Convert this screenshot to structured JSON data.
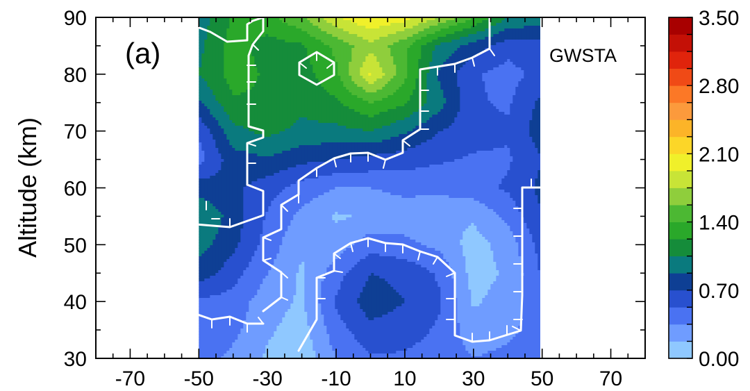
{
  "chart_data": {
    "type": "heatmap",
    "title": "",
    "panel_label": "(a)",
    "annotation": "GWSTA",
    "xlabel": "",
    "ylabel": "Altitude (km)",
    "xlim": [
      -80,
      80
    ],
    "ylim": [
      30,
      90
    ],
    "x_ticks": [
      "-70",
      "-50",
      "-30",
      "-10",
      "10",
      "30",
      "50",
      "70"
    ],
    "y_ticks": [
      "30",
      "40",
      "50",
      "60",
      "70",
      "80",
      "90"
    ],
    "data_extent_x": [
      -50,
      50
    ],
    "colorbar": {
      "min": 0.0,
      "max": 3.5,
      "levels": [
        0.0,
        0.175,
        0.35,
        0.525,
        0.7,
        0.875,
        1.05,
        1.225,
        1.4,
        1.575,
        1.75,
        1.925,
        2.1,
        2.275,
        2.45,
        2.625,
        2.8,
        2.975,
        3.15,
        3.325,
        3.5
      ],
      "tick_labels": [
        "0.00",
        "0.70",
        "1.40",
        "2.10",
        "2.80",
        "3.50"
      ],
      "colors": [
        "#8fc8ff",
        "#6f9cff",
        "#4a72f2",
        "#2850cf",
        "#0e3f94",
        "#0a7a7e",
        "#158c3a",
        "#2aa82a",
        "#4cb833",
        "#8fce3c",
        "#c8e437",
        "#f0f02a",
        "#fcd628",
        "#fcb428",
        "#fc9a3c",
        "#fc7826",
        "#f04a16",
        "#e0240c",
        "#c41006",
        "#a80000"
      ]
    },
    "contour_overlay": "white contour lines with tick marks",
    "x": [
      -50,
      -40,
      -30,
      -20,
      -10,
      0,
      10,
      20,
      30,
      40,
      50
    ],
    "y": [
      30,
      35,
      40,
      45,
      50,
      55,
      60,
      65,
      70,
      75,
      80,
      85,
      90
    ],
    "z": [
      [
        0.45,
        0.3,
        0.15,
        0.05,
        0.35,
        0.5,
        0.5,
        0.45,
        0.35,
        0.4,
        0.45
      ],
      [
        0.5,
        0.4,
        0.2,
        0.1,
        0.45,
        0.65,
        0.6,
        0.5,
        0.25,
        0.3,
        0.45
      ],
      [
        0.5,
        0.45,
        0.25,
        0.15,
        0.55,
        0.8,
        0.7,
        0.55,
        0.15,
        0.25,
        0.5
      ],
      [
        0.8,
        0.6,
        0.35,
        0.15,
        0.45,
        0.7,
        0.65,
        0.5,
        0.1,
        0.2,
        0.55
      ],
      [
        0.95,
        0.75,
        0.45,
        0.2,
        0.25,
        0.45,
        0.4,
        0.3,
        0.1,
        0.25,
        0.6
      ],
      [
        1.05,
        0.8,
        0.5,
        0.3,
        0.15,
        0.2,
        0.25,
        0.2,
        0.2,
        0.4,
        0.7
      ],
      [
        0.8,
        0.75,
        0.6,
        0.45,
        0.35,
        0.35,
        0.4,
        0.4,
        0.45,
        0.55,
        0.75
      ],
      [
        0.45,
        0.8,
        0.85,
        0.75,
        0.7,
        0.65,
        0.6,
        0.55,
        0.5,
        0.5,
        0.7
      ],
      [
        0.55,
        1.0,
        1.1,
        1.0,
        1.0,
        1.05,
        0.9,
        0.7,
        0.6,
        0.55,
        0.8
      ],
      [
        0.85,
        1.2,
        1.2,
        1.1,
        1.2,
        1.4,
        1.25,
        0.95,
        0.55,
        0.5,
        0.75
      ],
      [
        1.05,
        1.3,
        1.2,
        1.15,
        1.35,
        1.95,
        1.45,
        0.85,
        0.55,
        0.45,
        0.6
      ],
      [
        1.0,
        1.3,
        1.15,
        1.2,
        1.45,
        1.7,
        1.45,
        1.0,
        0.8,
        0.6,
        0.65
      ],
      [
        0.95,
        1.25,
        1.35,
        1.55,
        1.9,
        2.1,
        2.0,
        1.75,
        1.4,
        1.05,
        0.95
      ]
    ]
  }
}
